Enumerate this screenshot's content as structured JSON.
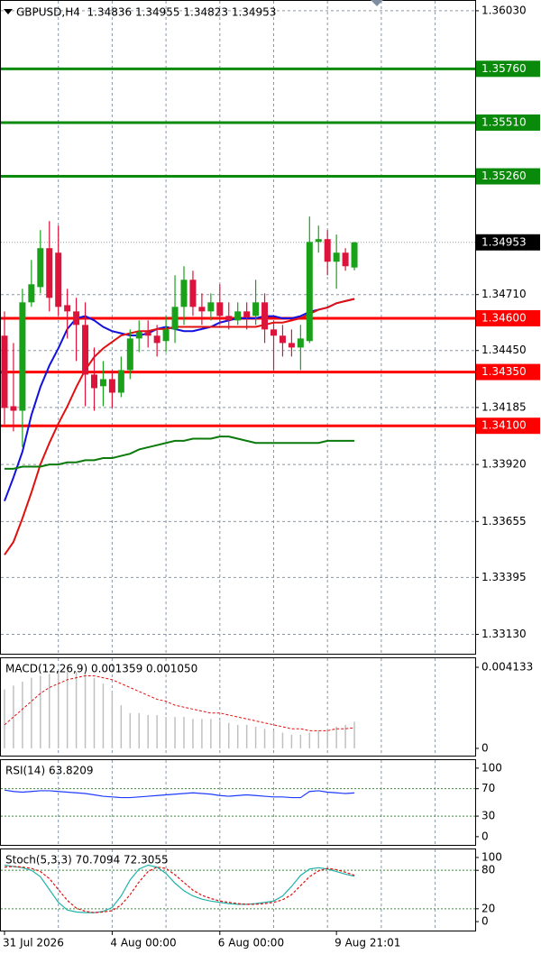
{
  "chart_data": [
    {
      "type": "candlestick",
      "title": "GBPUSD,H4  1.34836 1.34955 1.34823 1.34953",
      "categories": [
        "31 Jul 2026",
        null,
        null,
        null,
        null,
        null,
        null,
        null,
        null,
        null,
        null,
        null,
        "4 Aug 00:00",
        null,
        null,
        null,
        null,
        null,
        null,
        null,
        null,
        null,
        null,
        null,
        "6 Aug 00:00",
        null,
        null,
        null,
        null,
        null,
        null,
        null,
        null,
        null,
        null,
        null,
        null,
        "9 Aug 21:01",
        null,
        null
      ],
      "open": [
        1.34519,
        1.34191,
        1.3417,
        1.34674,
        1.34745,
        1.34926,
        1.34905,
        1.34661,
        1.34632,
        1.34569,
        1.34338,
        1.34284,
        1.34317,
        1.34254,
        1.34359,
        1.34506,
        1.34536,
        1.34519,
        1.34494,
        1.34548,
        1.34653,
        1.34779,
        1.34653,
        1.34632,
        1.34674,
        1.34611,
        1.3459,
        1.34632,
        1.34611,
        1.34674,
        1.34548,
        1.34519,
        1.34485,
        1.34464,
        1.34494,
        1.34955,
        1.34968,
        1.34863,
        1.34905,
        1.34836
      ],
      "high": [
        1.34632,
        1.34485,
        1.34737,
        1.34871,
        1.3501,
        1.35052,
        1.35031,
        1.34737,
        1.34695,
        1.34674,
        1.34464,
        1.34401,
        1.34359,
        1.34422,
        1.34548,
        1.3459,
        1.3459,
        1.34569,
        1.34611,
        1.348,
        1.34842,
        1.34821,
        1.34716,
        1.34716,
        1.34758,
        1.34674,
        1.34674,
        1.34674,
        1.34779,
        1.34716,
        1.3459,
        1.34569,
        1.34548,
        1.34569,
        1.35073,
        1.35031,
        1.3501,
        1.34989,
        1.34926,
        1.34955
      ],
      "low": [
        1.34107,
        1.34074,
        1.34002,
        1.34653,
        1.34716,
        1.34632,
        1.34611,
        1.34506,
        1.34401,
        1.34191,
        1.3417,
        1.34191,
        1.34183,
        1.34233,
        1.34317,
        1.34443,
        1.34464,
        1.34422,
        1.34443,
        1.34485,
        1.34569,
        1.34611,
        1.34569,
        1.3459,
        1.34569,
        1.34548,
        1.34569,
        1.34548,
        1.34569,
        1.34485,
        1.34359,
        1.34422,
        1.34422,
        1.34359,
        1.34485,
        1.34905,
        1.348,
        1.34737,
        1.34821,
        1.34823
      ],
      "close": [
        1.34183,
        1.3417,
        1.34674,
        1.34758,
        1.34926,
        1.34695,
        1.34653,
        1.34632,
        1.34569,
        1.34338,
        1.34275,
        1.34317,
        1.34254,
        1.34359,
        1.34506,
        1.34536,
        1.34519,
        1.34485,
        1.34548,
        1.34653,
        1.34779,
        1.34653,
        1.34632,
        1.34674,
        1.34611,
        1.3459,
        1.34632,
        1.34603,
        1.34674,
        1.34548,
        1.34519,
        1.34485,
        1.34464,
        1.34506,
        1.34955,
        1.34968,
        1.34863,
        1.34905,
        1.34842,
        1.34953
      ],
      "up_color": "#1aa11a",
      "down_color": "#dc143c",
      "moving_averages": [
        {
          "color": "#1010e0",
          "values": [
            1.3375,
            1.3386,
            1.3398,
            1.3415,
            1.3428,
            1.3438,
            1.3446,
            1.3455,
            1.346,
            1.3461,
            1.3459,
            1.3456,
            1.3454,
            1.3453,
            1.3452,
            1.3452,
            1.3453,
            1.3455,
            1.3456,
            1.3455,
            1.3454,
            1.3454,
            1.3455,
            1.3456,
            1.3458,
            1.3459,
            1.346,
            1.346,
            1.346,
            1.3461,
            1.3461,
            1.346,
            1.346,
            1.3461,
            1.3463,
            1.3464,
            1.3465,
            1.3467,
            1.3468,
            1.3469
          ]
        },
        {
          "color": "#e01010",
          "values": [
            1.335,
            1.3356,
            1.3367,
            1.3379,
            1.3392,
            1.3402,
            1.3411,
            1.3419,
            1.3428,
            1.3436,
            1.3442,
            1.3446,
            1.3449,
            1.3452,
            1.3453,
            1.3454,
            1.3454,
            1.3455,
            1.3455,
            1.3456,
            1.3456,
            1.3456,
            1.3456,
            1.3456,
            1.3456,
            1.3456,
            1.3456,
            1.3456,
            1.3456,
            1.3457,
            1.3458,
            1.3458,
            1.3459,
            1.346,
            1.3462,
            1.3464,
            1.3465,
            1.3467,
            1.3468,
            1.3469
          ]
        },
        {
          "color": "#0a7a0a",
          "values": [
            1.339,
            1.339,
            1.3391,
            1.3391,
            1.3391,
            1.3392,
            1.3392,
            1.3393,
            1.3393,
            1.3394,
            1.3394,
            1.3395,
            1.3395,
            1.3396,
            1.3397,
            1.3399,
            1.34,
            1.3401,
            1.3402,
            1.3403,
            1.3403,
            1.3404,
            1.3404,
            1.3404,
            1.3405,
            1.3405,
            1.3404,
            1.3403,
            1.3402,
            1.3402,
            1.3402,
            1.3402,
            1.3402,
            1.3402,
            1.3402,
            1.3402,
            1.3403,
            1.3403,
            1.3403,
            1.3403
          ]
        }
      ],
      "levels": [
        {
          "value": 1.3576,
          "label": "1.35760",
          "color": "#0a8a0a"
        },
        {
          "value": 1.3551,
          "label": "1.35510",
          "color": "#0a8a0a"
        },
        {
          "value": 1.3526,
          "label": "1.35260",
          "color": "#0a8a0a"
        },
        {
          "value": 1.346,
          "label": "1.34600",
          "color": "#ff0000"
        },
        {
          "value": 1.3435,
          "label": "1.34350",
          "color": "#ff0000"
        },
        {
          "value": 1.341,
          "label": "1.34100",
          "color": "#ff0000"
        }
      ],
      "ylim": [
        1.3304,
        1.3608
      ],
      "yticks": [
        {
          "value": 1.3603,
          "label": "1.36030"
        },
        {
          "value": 1.3471,
          "label": "1.34710"
        },
        {
          "value": 1.3445,
          "label": "1.34450"
        },
        1.34185,
        {
          "value": 1.3392,
          "label": "1.33920"
        },
        1.33655,
        1.33395,
        {
          "value": 1.3313,
          "label": "1.33130"
        }
      ],
      "grid": true
    },
    {
      "type": "macd",
      "title": "MACD(12,26,9) 0.001359 0.001050",
      "histogram": {
        "color": "#c0c0c0",
        "values": [
          0.003,
          0.0032,
          0.0034,
          0.0036,
          0.0037,
          0.0038,
          0.0039,
          0.0039,
          0.0039,
          0.0038,
          0.0036,
          0.0033,
          0.0029,
          0.0022,
          0.0018,
          0.0018,
          0.0017,
          0.0017,
          0.0016,
          0.0016,
          0.0016,
          0.0015,
          0.0015,
          0.0015,
          0.0014,
          0.0013,
          0.0012,
          0.0012,
          0.0011,
          0.001,
          0.0009,
          0.0008,
          0.0007,
          0.0007,
          0.0008,
          0.0009,
          0.001,
          0.0011,
          0.0012,
          0.001359
        ]
      },
      "signal": {
        "color": "#e01010",
        "values": [
          0.0012,
          0.0016,
          0.002,
          0.0024,
          0.0028,
          0.0031,
          0.0033,
          0.0035,
          0.0036,
          0.0037,
          0.0037,
          0.0036,
          0.0035,
          0.0033,
          0.0031,
          0.0029,
          0.0027,
          0.0025,
          0.0024,
          0.0022,
          0.0021,
          0.002,
          0.0019,
          0.0018,
          0.0018,
          0.0017,
          0.0016,
          0.0015,
          0.0014,
          0.0013,
          0.0012,
          0.0011,
          0.001,
          0.001,
          0.0009,
          0.0009,
          0.0009,
          0.001,
          0.001,
          0.00105
        ]
      },
      "ylim": [
        -0.00037,
        0.00464
      ],
      "yticks": [
        0.004133,
        0
      ]
    },
    {
      "type": "oscillator",
      "title": "RSI(14) 63.8209",
      "series": [
        {
          "color": "#1e3cff",
          "dashed": false,
          "values": [
            68,
            66,
            65,
            66,
            67,
            67,
            66,
            65,
            64,
            63,
            61,
            59,
            58,
            57,
            57,
            58,
            59,
            60,
            61,
            62,
            63,
            64,
            63,
            62,
            60,
            59,
            60,
            61,
            60,
            59,
            58,
            58,
            57,
            57,
            66,
            67,
            65,
            64,
            63,
            63.8209
          ]
        }
      ],
      "levels": [
        70,
        30
      ],
      "level_color": "#3a8a3a",
      "ylim": [
        -12,
        113
      ],
      "yticks": [
        100,
        70,
        30,
        0
      ]
    },
    {
      "type": "oscillator",
      "title": "Stoch(5,3,3) 70.7094 72.3055",
      "series": [
        {
          "color": "#20b2aa",
          "dashed": false,
          "values": [
            88,
            86,
            84,
            80,
            70,
            50,
            30,
            18,
            15,
            14,
            14,
            16,
            22,
            40,
            65,
            82,
            88,
            85,
            75,
            60,
            48,
            40,
            35,
            32,
            30,
            28,
            27,
            27,
            28,
            30,
            32,
            40,
            55,
            72,
            82,
            84,
            82,
            78,
            74,
            70.7094
          ]
        },
        {
          "color": "#e01010",
          "dashed": true,
          "values": [
            85,
            86,
            85,
            83,
            78,
            67,
            50,
            33,
            21,
            16,
            14,
            15,
            17,
            26,
            42,
            62,
            78,
            85,
            83,
            73,
            61,
            49,
            41,
            36,
            32,
            30,
            28,
            27,
            27,
            28,
            30,
            34,
            42,
            56,
            70,
            79,
            83,
            81,
            77,
            72.3055
          ]
        }
      ],
      "levels": [
        80,
        20
      ],
      "level_color": "#3a8a3a",
      "ylim": [
        -14,
        114
      ],
      "yticks": [
        100,
        80,
        20,
        0
      ]
    }
  ]
}
